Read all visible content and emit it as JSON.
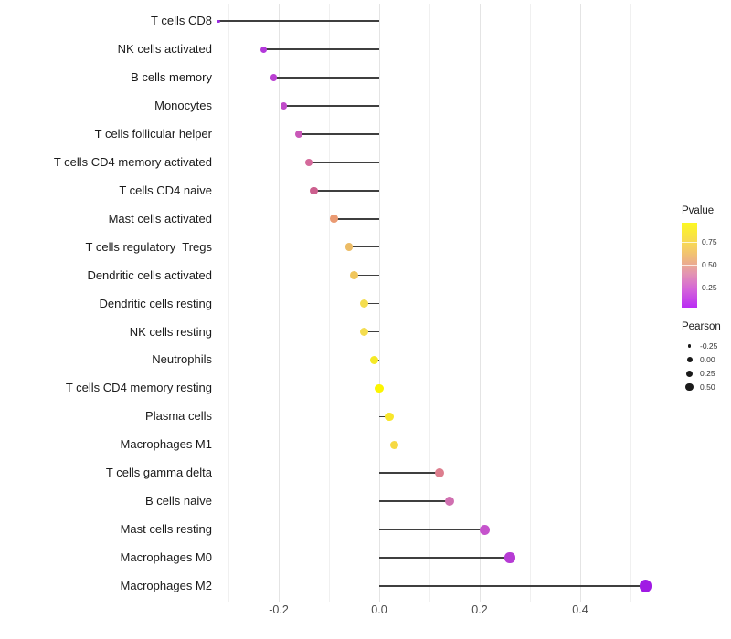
{
  "chart_data": {
    "type": "lollipop",
    "orientation": "horizontal",
    "xlabel": "",
    "ylabel": "",
    "x_tick_labels": [
      "-0.2",
      "0.0",
      "0.2",
      "0.4"
    ],
    "x_tick_values": [
      -0.2,
      0.0,
      0.2,
      0.4
    ],
    "x_minor_grid_values": [
      -0.3,
      -0.1,
      0.1,
      0.3,
      0.5
    ],
    "xlim": [
      -0.36,
      0.575
    ],
    "grid": "vertical major+minor, light gray, white background",
    "stem_color": "#3f3f3f",
    "points": [
      {
        "label": "T cells CD8",
        "pearson": -0.32,
        "color": "#9a2ce0",
        "size": 3.4
      },
      {
        "label": "NK cells activated",
        "pearson": -0.23,
        "color": "#b338da",
        "size": 7.2
      },
      {
        "label": "B cells memory",
        "pearson": -0.21,
        "color": "#ba40d2",
        "size": 7.5
      },
      {
        "label": "Monocytes",
        "pearson": -0.19,
        "color": "#c04ac9",
        "size": 7.8
      },
      {
        "label": "T cells follicular helper",
        "pearson": -0.16,
        "color": "#c958b8",
        "size": 8.0
      },
      {
        "label": "T cells CD4 memory activated",
        "pearson": -0.14,
        "color": "#d4699b",
        "size": 8.2
      },
      {
        "label": "T cells CD4 naive",
        "pearson": -0.13,
        "color": "#cc5f8e",
        "size": 8.3
      },
      {
        "label": "Mast cells activated",
        "pearson": -0.09,
        "color": "#ea9a72",
        "size": 8.6
      },
      {
        "label": "T cells regulatory  Tregs",
        "pearson": -0.06,
        "color": "#ecbc66",
        "size": 8.8
      },
      {
        "label": "Dendritic cells activated",
        "pearson": -0.05,
        "color": "#f0c65c",
        "size": 8.9
      },
      {
        "label": "Dendritic cells resting",
        "pearson": -0.03,
        "color": "#f4dd4f",
        "size": 9.0
      },
      {
        "label": "NK cells resting",
        "pearson": -0.03,
        "color": "#f4dd4f",
        "size": 9.0
      },
      {
        "label": "Neutrophils",
        "pearson": -0.01,
        "color": "#f5e926",
        "size": 9.2
      },
      {
        "label": "T cells CD4 memory resting",
        "pearson": 0.0,
        "color": "#fcf500",
        "size": 9.2
      },
      {
        "label": "Plasma cells",
        "pearson": 0.02,
        "color": "#f8e62b",
        "size": 9.4
      },
      {
        "label": "Macrophages M1",
        "pearson": 0.03,
        "color": "#f6d943",
        "size": 9.5
      },
      {
        "label": "T cells gamma delta",
        "pearson": 0.12,
        "color": "#dd7e8e",
        "size": 10.1
      },
      {
        "label": "B cells naive",
        "pearson": 0.14,
        "color": "#d06fb0",
        "size": 10.3
      },
      {
        "label": "Mast cells resting",
        "pearson": 0.21,
        "color": "#c553cc",
        "size": 10.8
      },
      {
        "label": "Macrophages M0",
        "pearson": 0.26,
        "color": "#b63bd4",
        "size": 11.2
      },
      {
        "label": "Macrophages M2",
        "pearson": 0.53,
        "color": "#a01ae4",
        "size": 13.2
      }
    ]
  },
  "legend": {
    "pvalue": {
      "title": "Pvalue",
      "ticks": [
        "0.75",
        "0.50",
        "0.25"
      ],
      "gradient_stops": [
        "#fcf822 0%",
        "#f6d25f 28%",
        "#edb285 45%",
        "#e394b2 60%",
        "#d566d8 78%",
        "#ba2cf4 100%"
      ]
    },
    "pearson": {
      "title": "Pearson",
      "items": [
        {
          "label": "-0.25",
          "diameter": 3.5
        },
        {
          "label": "0.00",
          "diameter": 6.0
        },
        {
          "label": "0.25",
          "diameter": 7.0
        },
        {
          "label": "0.50",
          "diameter": 8.5
        }
      ]
    }
  }
}
